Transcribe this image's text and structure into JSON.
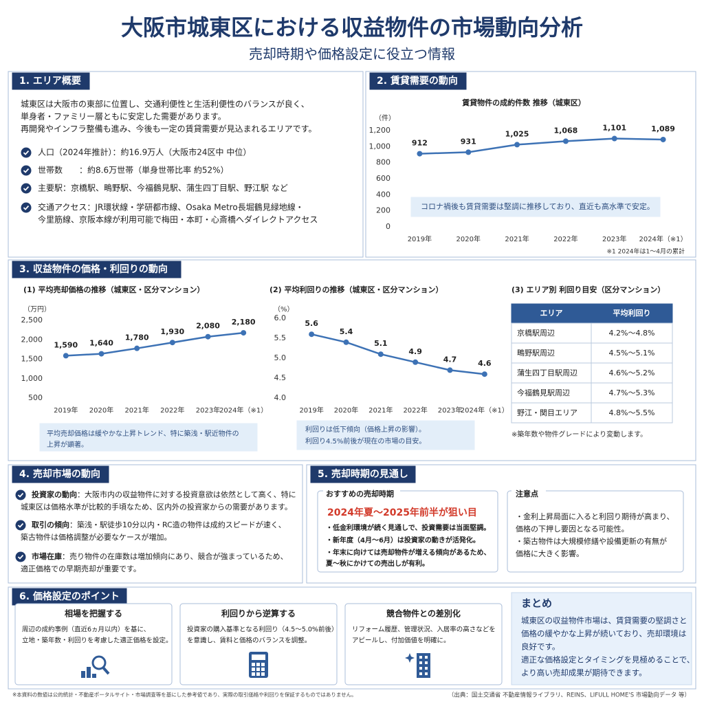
{
  "header": {
    "title": "大阪市城東区における収益物件の市場動向分析",
    "subtitle": "売却時期や価格設定に役立つ情報"
  },
  "section1": {
    "title": "1. エリア概要",
    "intro": [
      "城東区は大阪市の東部に位置し、交通利便性と生活利便性のバランスが良く、",
      "単身者・ファミリー層ともに安定した需要があります。",
      "再開発やインフラ整備も進み、今後も一定の賃貸需要が見込まれるエリアです。"
    ],
    "bullets": [
      [
        "人口（2024年推計）：約16.9万人（大阪市24区中 中位）"
      ],
      [
        "世帯数　　：約8.6万世帯（単身世帯比率 約52%）"
      ],
      [
        "主要駅：京橋駅、鴫野駅、今福鶴見駅、蒲生四丁目駅、野江駅 など"
      ],
      [
        "交通アクセス：JR環状線・学研都市線、Osaka Metro長堀鶴見緑地線・",
        "今里筋線、京阪本線が利用可能で梅田・本町・心斎橋へダイレクトアクセス"
      ]
    ]
  },
  "section2": {
    "title": "2. 賃貸需要の動向",
    "chart": {
      "type": "line",
      "title": "賃貸物件の成約件数 推移（城東区）",
      "y_unit": "（件）",
      "categories": [
        "2019年",
        "2020年",
        "2021年",
        "2022年",
        "2023年",
        "2024年（※1）"
      ],
      "values": [
        912,
        931,
        1025,
        1068,
        1101,
        1089
      ],
      "value_labels": [
        "912",
        "931",
        "1,025",
        "1,068",
        "1,101",
        "1,089"
      ],
      "color": "#3d72b5",
      "ylim": [
        0,
        1200
      ],
      "yticks": [
        0,
        200,
        400,
        600,
        800,
        {
          "value": 1000,
          "label": "1,000"
        },
        {
          "value": 1200,
          "label": "1,200"
        }
      ],
      "grid": false,
      "annotation": [
        "コロナ禍後も賃貸需要は堅調に推移しており、直近も高水準で安定。"
      ]
    },
    "note": "※1 2024年は1～4月の累計"
  },
  "section3": {
    "title": "3. 収益物件の価格・利回りの動向",
    "chart1": {
      "type": "line",
      "title": "(1) 平均売却価格の推移（城東区・区分マンション）",
      "y_unit": "（万円）",
      "categories": [
        "2019年",
        "2020年",
        "2021年",
        "2022年",
        "2023年",
        "2024年（※1）"
      ],
      "values": [
        1590,
        1640,
        1780,
        1930,
        2080,
        2180
      ],
      "value_labels": [
        "1,590",
        "1,640",
        "1,780",
        "1,930",
        "2,080",
        "2,180"
      ],
      "color": "#3d72b5",
      "ylim": [
        500,
        2500
      ],
      "yticks": [
        500,
        {
          "value": 1000,
          "label": "1,000"
        },
        {
          "value": 1500,
          "label": "1,500"
        },
        {
          "value": 2000,
          "label": "2,000"
        },
        {
          "value": 2500,
          "label": "2,500"
        }
      ],
      "grid": false,
      "annotation": [
        "平均売却価格は緩やかな上昇トレンド、特に築浅・駅近物件の",
        "上昇が顕著。"
      ]
    },
    "chart2": {
      "type": "line",
      "title": "(2) 平均利回りの推移（城東区・区分マンション）",
      "y_unit": "（%）",
      "categories": [
        "2019年",
        "2020年",
        "2021年",
        "2022年",
        "2023年",
        "2024年（※1）"
      ],
      "values": [
        5.6,
        5.4,
        5.1,
        4.9,
        4.7,
        4.6
      ],
      "color": "#3d72b5",
      "ylim": [
        4,
        6
      ],
      "yticks": [
        {
          "value": 4,
          "label": "4.0"
        },
        4.5,
        {
          "value": 5,
          "label": "5.0"
        },
        5.5,
        {
          "value": 6,
          "label": "6.0"
        }
      ],
      "grid": false,
      "annotation": [
        "利回りは低下傾向（価格上昇の影響）。",
        "利回り4.5%前後が現在の市場の目安。"
      ]
    },
    "table": {
      "title": "(3) エリア別 利回り目安（区分マンション）",
      "header": [
        "エリア",
        "平均利回り"
      ],
      "rows": [
        [
          "京橋駅周辺",
          "4.2%～4.8%"
        ],
        [
          "鴫野駅周辺",
          "4.5%～5.1%"
        ],
        [
          "蒲生四丁目駅周辺",
          "4.6%～5.2%"
        ],
        [
          "今福鶴見駅周辺",
          "4.7%～5.3%"
        ],
        [
          "野江・関目エリア",
          "4.8%～5.5%"
        ]
      ],
      "note": "※築年数や物件グレードにより変動します。"
    }
  },
  "section4": {
    "title": "4. 売却市場の動向",
    "items": [
      {
        "label": "投資家の動向",
        "text": [
          "：大阪市内の収益物件に対する投資意欲は依然として高く、特に",
          "城東区は価格水準が比較的手頃なため、区内外の投資家からの需要があります。"
        ]
      },
      {
        "label": "取引の傾向",
        "text": [
          "：築浅・駅徒歩10分以内・RC造の物件は成約スピードが速く、",
          "築古物件は価格調整が必要なケースが増加。"
        ]
      },
      {
        "label": "市場在庫",
        "text": [
          "：売り物件の在庫数は増加傾向にあり、競合が強まっているため、",
          "適正価格での早期売却が重要です。"
        ]
      }
    ]
  },
  "section5": {
    "title": "5. 売却時期の見通し",
    "recommend": {
      "title": "おすすめの売却時期",
      "highlight": "2024年夏～2025年前半が狙い目",
      "bullets": [
        [
          "・低金利環境が続く見通しで、投資需要は当面堅調。"
        ],
        [
          "・新年度（4月～6月）は投資家の動きが活発化。"
        ],
        [
          "・年末に向けては売却物件が増える傾向があるため、",
          "夏～秋にかけての売出しが有利。"
        ]
      ]
    },
    "caution": {
      "title": "注意点",
      "bullets": [
        [
          "・金利上昇局面に入ると利回り期待が高まり、",
          "価格の下押し要因となる可能性。"
        ],
        [
          "・築古物件は大規模修繕や設備更新の有無が",
          "価格に大きく影響。"
        ]
      ]
    }
  },
  "section6": {
    "title": "6. 価格設定のポイント",
    "cards": [
      {
        "title": "相場を把握する",
        "text": [
          "周辺の成約事例（直近6ヵ月以内）を基に、",
          "立地・築年数・利回りを考慮した適正価格を設定。"
        ]
      },
      {
        "title": "利回りから逆算する",
        "text": [
          "投資家の購入基準となる利回り（4.5～5.0%前後）",
          "を意識し、賃料と価格のバランスを調整。"
        ]
      },
      {
        "title": "競合物件との差別化",
        "text": [
          "リフォーム履歴、管理状況、入居率の高さなどを",
          "アピールし、付加価値を明確に。"
        ]
      }
    ],
    "summary": {
      "title": "まとめ",
      "text": [
        "城東区の収益物件市場は、賃貸需要の堅調さと",
        "価格の緩やかな上昇が続いており、売却環境は",
        "良好です。",
        "適正な価格設定とタイミングを見極めることで、",
        "より高い売却成果が期待できます。"
      ]
    }
  },
  "footer": {
    "note": "※本資料の数値は公的統計・不動産ポータルサイト・市場調査等を基にした参考値であり、実際の取引価格や利回りを保証するものではありません。",
    "source": "（出典：国土交通省 不動産情報ライブラリ、REINS、LIFULL HOME'S 市場動向データ 等）"
  }
}
